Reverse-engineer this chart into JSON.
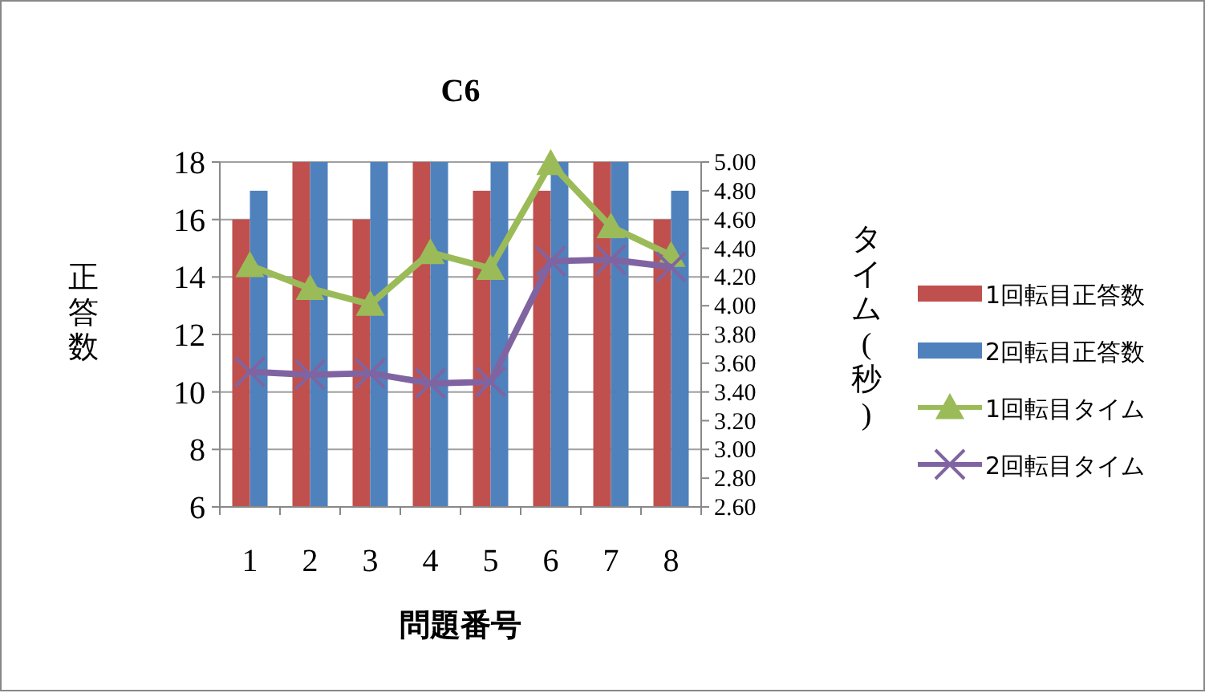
{
  "chart_data": {
    "type": "bar",
    "title": "C6",
    "xlabel": "問題番号",
    "ylabel": "正答数",
    "y2label": "タイム(秒)",
    "categories": [
      "1",
      "2",
      "3",
      "4",
      "5",
      "6",
      "7",
      "8"
    ],
    "series": [
      {
        "name": "1回転目正答数",
        "color": "#c0504d",
        "values": [
          16,
          18,
          16,
          18,
          17,
          17,
          18,
          16
        ]
      },
      {
        "name": "2回転目正答数",
        "color": "#4f81bd",
        "values": [
          17,
          18,
          18,
          18,
          18,
          18,
          18,
          17
        ]
      },
      {
        "name": "1回転目タイム",
        "type": "line",
        "axis": "y2",
        "marker": "triangle",
        "color": "#9bbb59",
        "values": [
          4.28,
          4.12,
          4.01,
          4.37,
          4.26,
          4.99,
          4.55,
          4.35
        ]
      },
      {
        "name": "2回転目タイム",
        "type": "line",
        "axis": "y2",
        "marker": "cross",
        "color": "#8064a2",
        "values": [
          3.54,
          3.52,
          3.53,
          3.46,
          3.47,
          4.31,
          4.32,
          4.27
        ]
      }
    ],
    "ylim": [
      6,
      18
    ],
    "yticks": [
      6,
      8,
      10,
      12,
      14,
      16,
      18
    ],
    "y2lim": [
      2.6,
      5.0
    ],
    "y2ticks": [
      {
        "value": 2.6,
        "label": "2.60"
      },
      {
        "value": 2.8,
        "label": "2.80"
      },
      {
        "value": 3.0,
        "label": "3.00"
      },
      {
        "value": 3.2,
        "label": "3.20"
      },
      {
        "value": 3.4,
        "label": "3.40"
      },
      {
        "value": 3.6,
        "label": "3.60"
      },
      {
        "value": 3.8,
        "label": "3.80"
      },
      {
        "value": 4.0,
        "label": "4.00"
      },
      {
        "value": 4.2,
        "label": "4.20"
      },
      {
        "value": 4.4,
        "label": "4.40"
      },
      {
        "value": 4.6,
        "label": "4.60"
      },
      {
        "value": 4.8,
        "label": "4.80"
      },
      {
        "value": 5.0,
        "label": "5.00"
      }
    ],
    "grid": "y",
    "legend": "right"
  }
}
